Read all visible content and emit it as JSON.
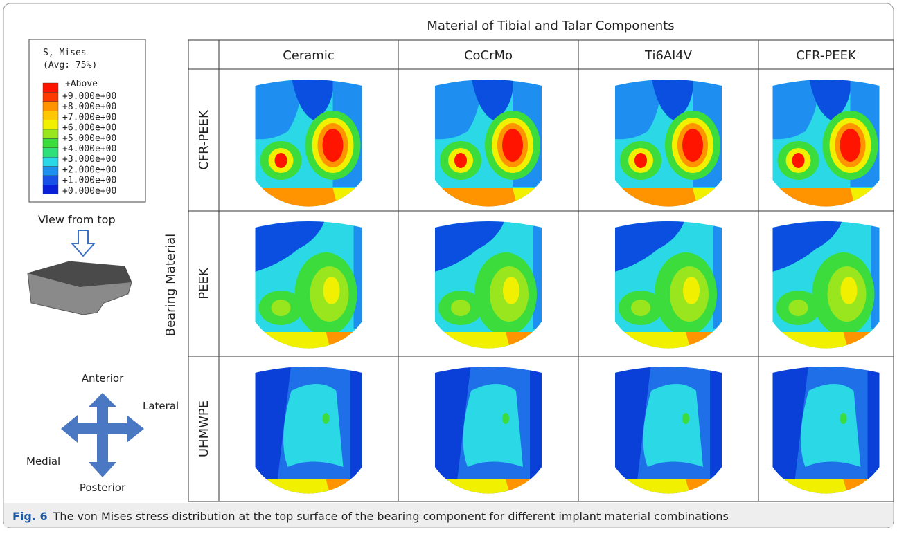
{
  "figure": {
    "column_header": "Material of Tibial and Talar Components",
    "columns": [
      "Ceramic",
      "CoCrMo",
      "Ti6Al4V",
      "CFR-PEEK"
    ],
    "row_header": "Bearing Material",
    "rows": [
      "CFR-PEEK",
      "PEEK",
      "UHMWPE"
    ],
    "legend": {
      "title": "S, Mises",
      "subtitle": "(Avg: 75%)",
      "above": "+Above",
      "levels": [
        "+9.000e+00",
        "+8.000e+00",
        "+7.000e+00",
        "+6.000e+00",
        "+5.000e+00",
        "+4.000e+00",
        "+3.000e+00",
        "+2.000e+00",
        "+1.000e+00",
        "+0.000e+00"
      ]
    },
    "view_label": "View from top",
    "directions": {
      "anterior": "Anterior",
      "lateral": "Lateral",
      "medial": "Medial",
      "posterior": "Posterior"
    },
    "caption": {
      "label": "Fig. 6",
      "text": "The von Mises stress distribution at the top surface of the bearing component for different implant material combinations"
    }
  }
}
